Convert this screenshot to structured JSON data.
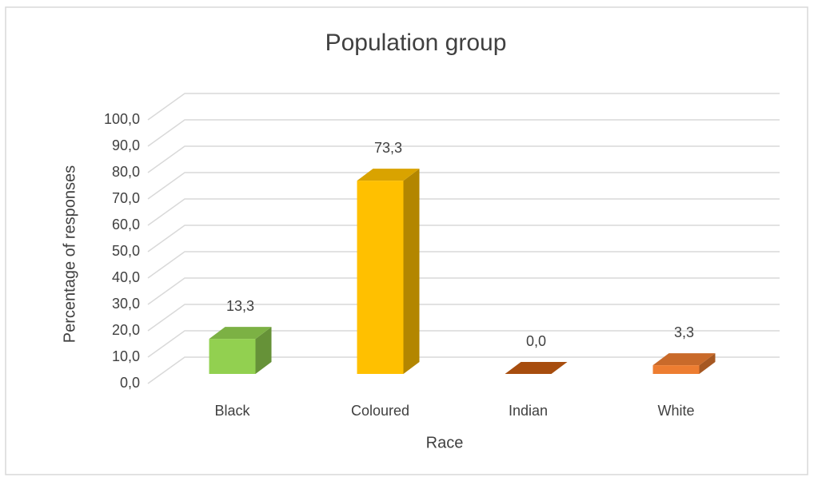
{
  "chart_data": {
    "type": "bar3d",
    "title": "Population group",
    "x_label": "Race",
    "y_label": "Percentage of responses",
    "categories": [
      "Black",
      "Coloured",
      "Indian",
      "White"
    ],
    "values": [
      13.3,
      73.3,
      0.0,
      3.3
    ],
    "value_labels": [
      "13,3",
      "73,3",
      "0,0",
      "3,3"
    ],
    "colors": [
      "#92d050",
      "#ffc000",
      "#c55a11",
      "#ed7d31"
    ],
    "ylim": [
      0,
      100
    ],
    "yticks": [
      {
        "value": 0,
        "label": "0,0"
      },
      {
        "value": 10,
        "label": "10,0"
      },
      {
        "value": 20,
        "label": "20,0"
      },
      {
        "value": 30,
        "label": "30,0"
      },
      {
        "value": 40,
        "label": "40,0"
      },
      {
        "value": 50,
        "label": "50,0"
      },
      {
        "value": 60,
        "label": "60,0"
      },
      {
        "value": 70,
        "label": "70,0"
      },
      {
        "value": 80,
        "label": "80,0"
      },
      {
        "value": 90,
        "label": "90,0"
      },
      {
        "value": 100,
        "label": "100,0"
      }
    ],
    "grid": true
  }
}
